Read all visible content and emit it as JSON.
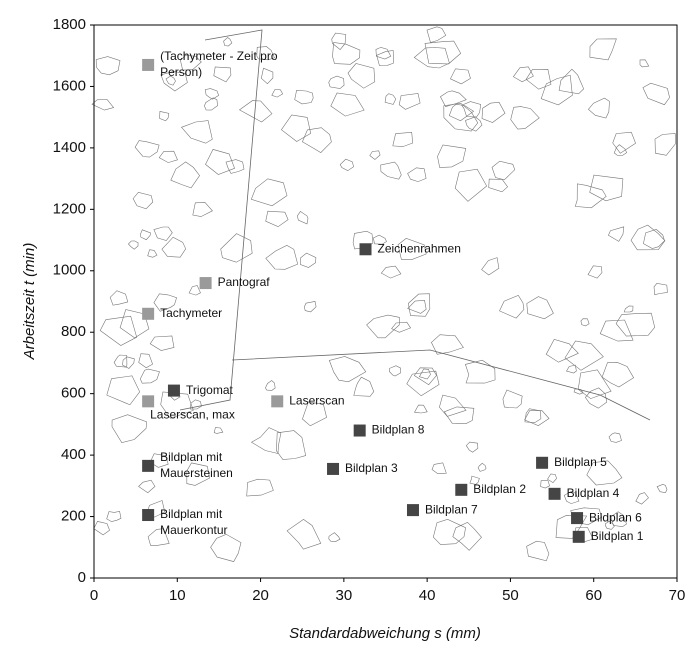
{
  "chart_data": {
    "type": "scatter",
    "xlabel": "Standardabweichung s (mm)",
    "ylabel": "Arbeitszeit t (min)",
    "xlim": [
      0,
      70
    ],
    "xticks": [
      0,
      10,
      20,
      30,
      40,
      50,
      60,
      70
    ],
    "ylim": [
      0,
      1800
    ],
    "yticks": [
      0,
      200,
      400,
      600,
      800,
      1000,
      1200,
      1400,
      1600,
      1800
    ],
    "grid": false,
    "series": [
      {
        "color": "#9a9a9a",
        "x": [
          6.5,
          13.4,
          6.5,
          6.5,
          22
        ],
        "values": [
          1670,
          960,
          860,
          575,
          575
        ],
        "labels": [
          [
            "(Tachymeter - Zeit pro",
            "Person)"
          ],
          [
            "Pantograf"
          ],
          [
            "Tachymeter"
          ],
          [
            "Laserscan, max"
          ],
          [
            "Laserscan"
          ]
        ]
      },
      {
        "color": "#454545",
        "x": [
          9.6,
          32.6,
          31.9,
          6.5,
          28.7,
          53.8,
          44.1,
          55.3,
          38.3,
          6.5,
          58,
          58.2
        ],
        "values": [
          610,
          1070,
          480,
          365,
          355,
          375,
          287,
          274,
          221,
          205,
          195,
          134
        ],
        "labels": [
          [
            "Trigomat"
          ],
          [
            "Zeichenrahmen"
          ],
          [
            "Bildplan 8"
          ],
          [
            "Bildplan mit",
            "Mauersteinen"
          ],
          [
            "Bildplan 3"
          ],
          [
            "Bildplan 5"
          ],
          [
            "Bildplan 2"
          ],
          [
            "Bildplan 4"
          ],
          [
            "Bildplan 7"
          ],
          [
            "Bildplan mit",
            "Mauerkontur"
          ],
          [
            "Bildplan 6"
          ],
          [
            "Bildplan 1"
          ]
        ]
      }
    ]
  }
}
